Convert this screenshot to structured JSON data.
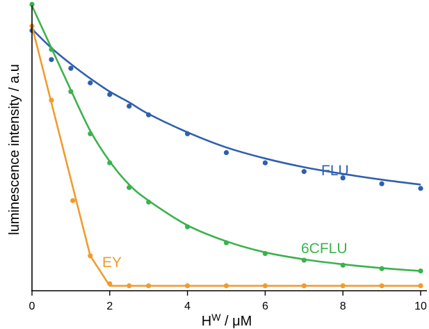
{
  "chart_data": {
    "type": "scatter",
    "xlabel_main": "H",
    "xlabel_sup": "W",
    "xlabel_rest": " / μM",
    "ylabel": "luminescence intensity / a.u",
    "xlim": [
      0,
      10
    ],
    "ylim": [
      0,
      100
    ],
    "x_ticks": [
      0,
      2,
      4,
      6,
      8,
      10
    ],
    "grid": false,
    "legend": "none",
    "series": [
      {
        "name": "FLU",
        "color": "#2f5fad",
        "points": [
          [
            0,
            89.5
          ],
          [
            0.5,
            79.5
          ],
          [
            1,
            76.5
          ],
          [
            1.5,
            71.5
          ],
          [
            2,
            67.5
          ],
          [
            2.5,
            63.5
          ],
          [
            3,
            60.5
          ],
          [
            4,
            54
          ],
          [
            5,
            47.5
          ],
          [
            6,
            44
          ],
          [
            7,
            41
          ],
          [
            8,
            38.8
          ],
          [
            9,
            36.8
          ],
          [
            10,
            35.2
          ]
        ],
        "curve": [
          [
            0,
            90
          ],
          [
            0.5,
            83.5
          ],
          [
            1,
            78
          ],
          [
            1.5,
            73
          ],
          [
            2,
            68.5
          ],
          [
            2.5,
            64.8
          ],
          [
            3,
            60.8
          ],
          [
            4,
            54.5
          ],
          [
            5,
            49.3
          ],
          [
            6,
            45.5
          ],
          [
            7,
            42.5
          ],
          [
            8,
            40.2
          ],
          [
            9,
            38.2
          ],
          [
            10,
            36.5
          ]
        ]
      },
      {
        "name": "6CFLU",
        "color": "#3bb24c",
        "points": [
          [
            0,
            98.5
          ],
          [
            0.5,
            83
          ],
          [
            1,
            68.5
          ],
          [
            1.5,
            54
          ],
          [
            2,
            44
          ],
          [
            2.5,
            35.5
          ],
          [
            3,
            30.5
          ],
          [
            4,
            22
          ],
          [
            5,
            16.5
          ],
          [
            6,
            12.8
          ],
          [
            7,
            10.5
          ],
          [
            8,
            8.8
          ],
          [
            9,
            7.6
          ],
          [
            10,
            6.8
          ]
        ],
        "curve": [
          [
            0,
            98
          ],
          [
            0.5,
            83.5
          ],
          [
            1,
            69
          ],
          [
            1.5,
            55
          ],
          [
            2,
            44.5
          ],
          [
            2.5,
            36.5
          ],
          [
            3,
            31
          ],
          [
            4,
            22.5
          ],
          [
            5,
            17
          ],
          [
            6,
            13.2
          ],
          [
            7,
            10.8
          ],
          [
            8,
            9.1
          ],
          [
            9,
            7.8
          ],
          [
            10,
            6.8
          ]
        ]
      },
      {
        "name": "EY",
        "color": "#f19b2c",
        "points": [
          [
            0,
            91
          ],
          [
            0.5,
            65.5
          ],
          [
            1.05,
            31
          ],
          [
            1.5,
            12
          ],
          [
            2,
            2.4
          ],
          [
            2.5,
            1.7
          ],
          [
            3,
            1.7
          ],
          [
            4,
            1.7
          ],
          [
            5,
            1.7
          ],
          [
            6,
            1.7
          ],
          [
            7,
            1.7
          ],
          [
            8,
            1.7
          ],
          [
            9,
            1.7
          ],
          [
            10,
            1.7
          ]
        ],
        "curve": [
          [
            0,
            91
          ],
          [
            1.5,
            12
          ],
          [
            2,
            1.7
          ],
          [
            10,
            1.7
          ]
        ]
      }
    ]
  }
}
